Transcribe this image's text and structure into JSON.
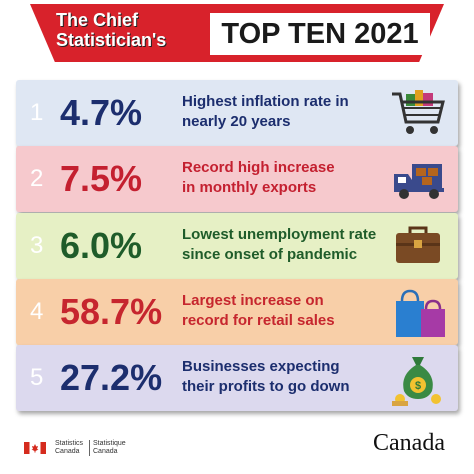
{
  "header": {
    "left_line1": "The Chief",
    "left_line2": "Statistician's",
    "right_title": "TOP TEN 2021",
    "color": "#d8222b"
  },
  "items": [
    {
      "number": "1",
      "percent": "4.7%",
      "line1": "Highest inflation rate in",
      "line2": "nearly 20 years",
      "bg": "#dfe7f3",
      "text_color": "#1c2e6e",
      "icon": "shopping-cart-icon"
    },
    {
      "number": "2",
      "percent": "7.5%",
      "line1": "Record high increase",
      "line2": "in monthly exports",
      "bg": "#f6c9cd",
      "text_color": "#c42030",
      "icon": "delivery-truck-icon"
    },
    {
      "number": "3",
      "percent": "6.0%",
      "line1": "Lowest unemployment rate",
      "line2": "since onset of pandemic",
      "bg": "#e6f0c5",
      "text_color": "#1f5c2a",
      "icon": "briefcase-icon"
    },
    {
      "number": "4",
      "percent": "58.7%",
      "line1": "Largest increase on",
      "line2": "record for retail sales",
      "bg": "#f8cfa8",
      "text_color": "#c6262e",
      "icon": "shopping-bags-icon"
    },
    {
      "number": "5",
      "percent": "27.2%",
      "line1": "Businesses expecting",
      "line2": "their profits to go down",
      "bg": "#dcd9ee",
      "text_color": "#1c2e6e",
      "icon": "money-bag-icon"
    }
  ],
  "footer": {
    "sc_en_1": "Statistics",
    "sc_en_2": "Canada",
    "sc_fr_1": "Statistique",
    "sc_fr_2": "Canada",
    "wordmark": "Canada"
  }
}
